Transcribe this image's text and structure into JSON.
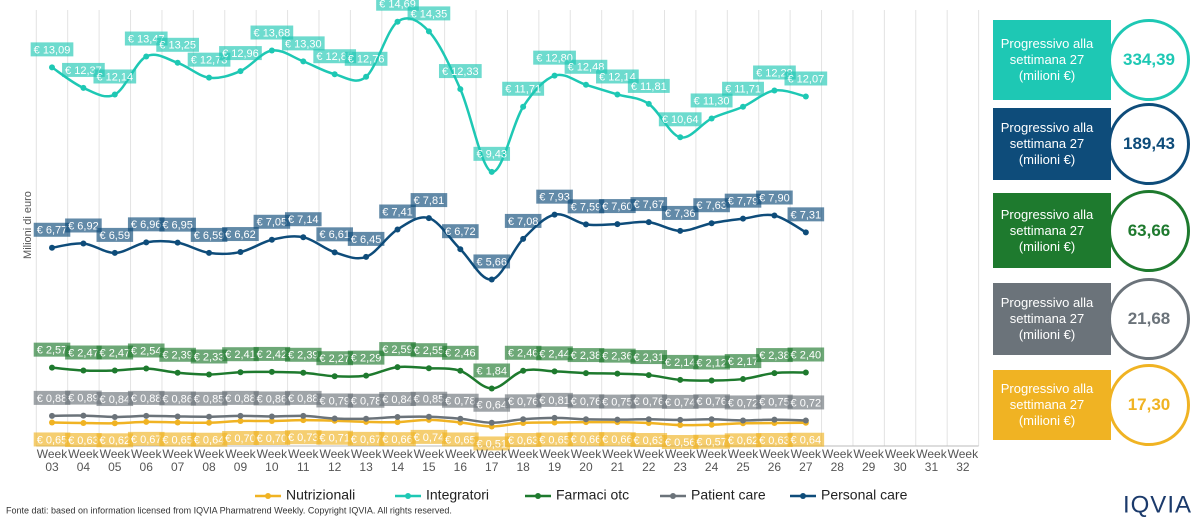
{
  "chart_data": {
    "type": "line",
    "y_label": "Milioni di euro",
    "categories": [
      "Week 03",
      "Week 04",
      "Week 05",
      "Week 06",
      "Week 07",
      "Week 08",
      "Week 09",
      "Week 10",
      "Week 11",
      "Week 12",
      "Week 13",
      "Week 14",
      "Week 15",
      "Week 16",
      "Week 17",
      "Week 18",
      "Week 19",
      "Week 20",
      "Week 21",
      "Week 22",
      "Week 23",
      "Week 24",
      "Week 25",
      "Week 26",
      "Week 27",
      "Week 28",
      "Week 29",
      "Week 30",
      "Week 31",
      "Week 32"
    ],
    "ylim": [
      0,
      15.1
    ],
    "series": [
      {
        "name": "Nutrizionali",
        "color": "#f0b323",
        "values": [
          0.65,
          0.63,
          0.62,
          0.67,
          0.65,
          0.64,
          0.7,
          0.7,
          0.73,
          0.71,
          0.67,
          0.66,
          0.74,
          0.65,
          0.51,
          0.63,
          0.65,
          0.66,
          0.66,
          0.63,
          0.56,
          0.57,
          0.62,
          0.63,
          0.64,
          null,
          null,
          null,
          null,
          null
        ],
        "value_labels": [
          "€ 0,65",
          "€ 0,63",
          "€ 0,62",
          "€ 0,67",
          "€ 0,65",
          "€ 0,64",
          "€ 0,70",
          "€ 0,70",
          "€ 0,73",
          "€ 0,71",
          "€ 0,67",
          "€ 0,66",
          "€ 0,74",
          "€ 0,65",
          "€ 0,51",
          "€ 0,63",
          "€ 0,65",
          "€ 0,66",
          "€ 0,66",
          "€ 0,63",
          "€ 0,56",
          "€ 0,57",
          "€ 0,62",
          "€ 0,63",
          "€ 0,64",
          null,
          null,
          null,
          null,
          null
        ]
      },
      {
        "name": "Integratori",
        "color": "#1ec8b4",
        "values": [
          13.09,
          12.37,
          12.14,
          13.47,
          13.25,
          12.73,
          12.96,
          13.68,
          13.3,
          12.85,
          12.76,
          14.69,
          14.35,
          12.33,
          9.43,
          11.71,
          12.8,
          12.48,
          12.14,
          11.81,
          10.64,
          11.3,
          11.71,
          12.28,
          12.07,
          null,
          null,
          null,
          null,
          null
        ],
        "value_labels": [
          "€ 13,09",
          "€ 12,37",
          "€ 12,14",
          "€ 13,47",
          "€ 13,25",
          "€ 12,73",
          "€ 12,96",
          "€ 13,68",
          "€ 13,30",
          "€ 12,85",
          "€ 12,76",
          "€ 14,69",
          "€ 14,35",
          "€ 12,33",
          "€ 9,43",
          "€ 11,71",
          "€ 12,80",
          "€ 12,48",
          "€ 12,14",
          "€ 11,81",
          "€ 10,64",
          "€ 11,30",
          "€ 11,71",
          "€ 12,28",
          "€ 12,07",
          null,
          null,
          null,
          null,
          null
        ]
      },
      {
        "name": "Farmaci otc",
        "color": "#1e7a2e",
        "values": [
          2.57,
          2.47,
          2.47,
          2.54,
          2.39,
          2.33,
          2.41,
          2.42,
          2.39,
          2.27,
          2.29,
          2.59,
          2.55,
          2.46,
          1.84,
          2.46,
          2.44,
          2.38,
          2.36,
          2.31,
          2.14,
          2.12,
          2.17,
          2.38,
          2.4,
          null,
          null,
          null,
          null,
          null
        ],
        "value_labels": [
          "€ 2,57",
          "€ 2,47",
          "€ 2,47",
          "€ 2,54",
          "€ 2,39",
          "€ 2,33",
          "€ 2,41",
          "€ 2,42",
          "€ 2,39",
          "€ 2,27",
          "€ 2,29",
          "€ 2,59",
          "€ 2,55",
          "€ 2,46",
          "€ 1,84",
          "€ 2,46",
          "€ 2,44",
          "€ 2,38",
          "€ 2,36",
          "€ 2,31",
          "€ 2,14",
          "€ 2,12",
          "€ 2,17",
          "€ 2,38",
          "€ 2,40",
          null,
          null,
          null,
          null,
          null
        ]
      },
      {
        "name": "Patient care",
        "color": "#6b737a",
        "values": [
          0.88,
          0.89,
          0.84,
          0.88,
          0.86,
          0.85,
          0.88,
          0.86,
          0.88,
          0.79,
          0.78,
          0.84,
          0.85,
          0.78,
          0.64,
          0.76,
          0.81,
          0.76,
          0.75,
          0.76,
          0.74,
          0.76,
          0.72,
          0.75,
          0.72,
          null,
          null,
          null,
          null,
          null
        ],
        "value_labels": [
          "€ 0,88",
          "€ 0,89",
          "€ 0,84",
          "€ 0,88",
          "€ 0,86",
          "€ 0,85",
          "€ 0,88",
          "€ 0,86",
          "€ 0,88",
          "€ 0,79",
          "€ 0,78",
          "€ 0,84",
          "€ 0,85",
          "€ 0,78",
          "€ 0,64",
          "€ 0,76",
          "€ 0,81",
          "€ 0,76",
          "€ 0,75",
          "€ 0,76",
          "€ 0,74",
          "€ 0,76",
          "€ 0,72",
          "€ 0,75",
          "€ 0,72",
          null,
          null,
          null,
          null,
          null
        ]
      },
      {
        "name": "Personal care",
        "color": "#0e4c7a",
        "values": [
          6.77,
          6.92,
          6.59,
          6.96,
          6.95,
          6.59,
          6.62,
          7.05,
          7.14,
          6.61,
          6.45,
          7.41,
          7.81,
          6.72,
          5.66,
          7.08,
          7.93,
          7.59,
          7.6,
          7.67,
          7.36,
          7.63,
          7.79,
          7.9,
          7.31,
          null,
          null,
          null,
          null,
          null
        ],
        "value_labels": [
          "€ 6,77",
          "€ 6,92",
          "€ 6,59",
          "€ 6,96",
          "€ 6,95",
          "€ 6,59",
          "€ 6,62",
          "€ 7,05",
          "€ 7,14",
          "€ 6,61",
          "€ 6,45",
          "€ 7,41",
          "€ 7,81",
          "€ 6,72",
          "€ 5,66",
          "€ 7,08",
          "€ 7,93",
          "€ 7,59",
          "€ 7,60",
          "€ 7,67",
          "€ 7,36",
          "€ 7,63",
          "€ 7,79",
          "€ 7,90",
          "€ 7,31",
          null,
          null,
          null,
          null,
          null
        ]
      }
    ],
    "summary": [
      {
        "label": "Progressivo alla settimana 27 (milioni €)",
        "value": "334,39",
        "color": "#1ec8b4"
      },
      {
        "label": "Progressivo alla settimana 27 (milioni €)",
        "value": "189,43",
        "color": "#0e4c7a"
      },
      {
        "label": "Progressivo alla settimana 27 (milioni €)",
        "value": "63,66",
        "color": "#1e7a2e"
      },
      {
        "label": "Progressivo alla settimana 27 (milioni €)",
        "value": "21,68",
        "color": "#6b737a"
      },
      {
        "label": "Progressivo alla settimana 27 (milioni €)",
        "value": "17,30",
        "color": "#f0b323"
      }
    ],
    "source": "Fonte dati: based on information licensed from IQVIA Pharmatrend Weekly. Copyright IQVIA. All rights reserved.",
    "logo": "IQVIA"
  }
}
